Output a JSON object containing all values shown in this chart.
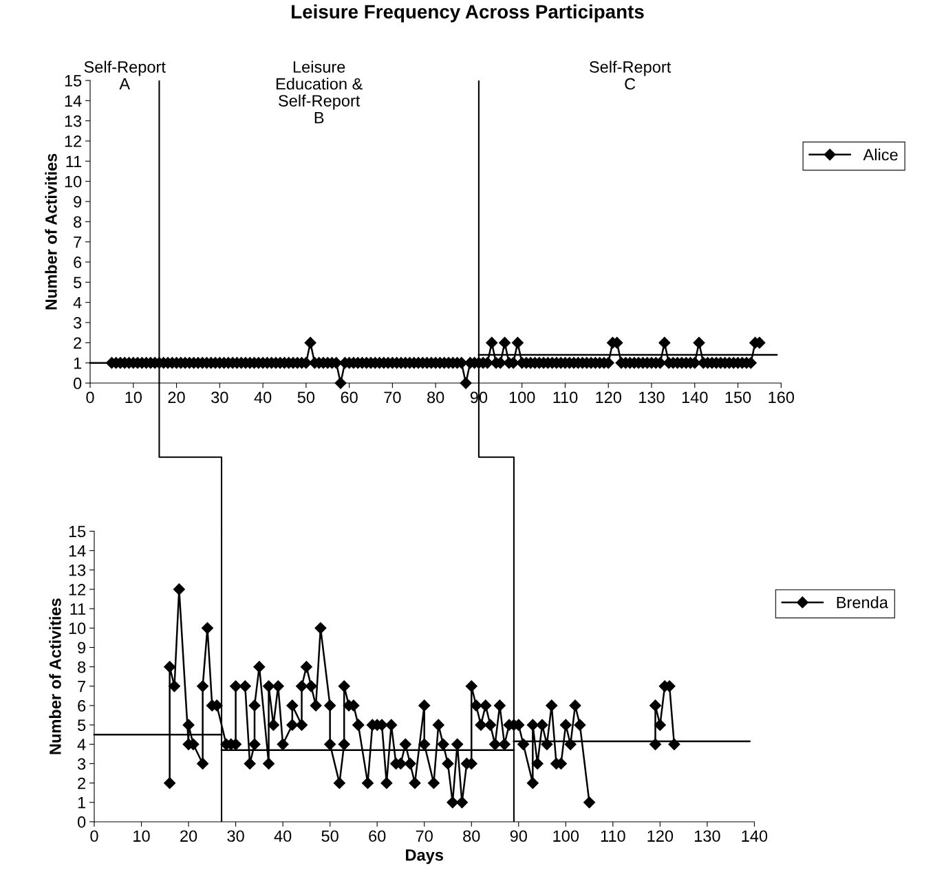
{
  "chart_data": [
    {
      "type": "line",
      "title": "Leisure Frequency Across Participants",
      "ylabel": "Number of Activities",
      "xlim": [
        0,
        160
      ],
      "xticks": [
        0,
        10,
        20,
        30,
        40,
        50,
        60,
        70,
        80,
        90,
        100,
        110,
        120,
        130,
        140,
        150,
        160
      ],
      "ylim": [
        0,
        15
      ],
      "yticks": [
        0,
        1,
        2,
        3,
        4,
        5,
        6,
        7,
        8,
        9,
        10,
        11,
        12,
        13,
        14,
        15
      ],
      "grid": false,
      "legend": "right",
      "ref_lines": [
        {
          "axis": "x",
          "value": 16,
          "color": "#000000"
        },
        {
          "axis": "x",
          "value": 90,
          "color": "#000000"
        }
      ],
      "annotations": [
        "Self-Report\nA",
        "Leisure\nEducation &\nSelf-Report\nB",
        "Self-Report\nC"
      ],
      "series": [
        {
          "name": "Alice",
          "color": "#000000",
          "marker": "diamond",
          "x": [
            5,
            6,
            7,
            8,
            9,
            10,
            11,
            12,
            13,
            14,
            15,
            16,
            17,
            18,
            19,
            20,
            21,
            22,
            23,
            24,
            25,
            26,
            27,
            28,
            29,
            30,
            31,
            32,
            33,
            34,
            35,
            36,
            37,
            38,
            39,
            40,
            41,
            42,
            43,
            44,
            45,
            46,
            47,
            48,
            49,
            50,
            51,
            52,
            53,
            54,
            55,
            56,
            57,
            58,
            59,
            60,
            61,
            62,
            63,
            64,
            65,
            66,
            67,
            68,
            69,
            70,
            71,
            72,
            73,
            74,
            75,
            76,
            77,
            78,
            79,
            80,
            81,
            82,
            83,
            84,
            85,
            86,
            87,
            88,
            89,
            90,
            91,
            92,
            93,
            94,
            95,
            96,
            97,
            98,
            99,
            100,
            101,
            102,
            103,
            104,
            105,
            106,
            107,
            108,
            109,
            110,
            111,
            112,
            113,
            114,
            115,
            116,
            117,
            118,
            119,
            120,
            121,
            122,
            123,
            124,
            125,
            126,
            127,
            128,
            129,
            130,
            131,
            132,
            133,
            134,
            135,
            136,
            137,
            138,
            139,
            140,
            141,
            142,
            143,
            144,
            145,
            146,
            147,
            148,
            149,
            150,
            151,
            152,
            153,
            154,
            155
          ],
          "values": [
            1,
            1,
            1,
            1,
            1,
            1,
            1,
            1,
            1,
            1,
            1,
            1,
            1,
            1,
            1,
            1,
            1,
            1,
            1,
            1,
            1,
            1,
            1,
            1,
            1,
            1,
            1,
            1,
            1,
            1,
            1,
            1,
            1,
            1,
            1,
            1,
            1,
            1,
            1,
            1,
            1,
            1,
            1,
            1,
            1,
            1,
            2,
            1,
            1,
            1,
            1,
            1,
            1,
            0,
            1,
            1,
            1,
            1,
            1,
            1,
            1,
            1,
            1,
            1,
            1,
            1,
            1,
            1,
            1,
            1,
            1,
            1,
            1,
            1,
            1,
            1,
            1,
            1,
            1,
            1,
            1,
            1,
            0,
            1,
            1,
            1,
            1,
            1,
            2,
            1,
            1,
            2,
            1,
            1,
            2,
            1,
            1,
            1,
            1,
            1,
            1,
            1,
            1,
            1,
            1,
            1,
            1,
            1,
            1,
            1,
            1,
            1,
            1,
            1,
            1,
            1,
            2,
            2,
            1,
            1,
            1,
            1,
            1,
            1,
            1,
            1,
            1,
            1,
            2,
            1,
            1,
            1,
            1,
            1,
            1,
            1,
            2,
            1,
            1,
            1,
            1,
            1,
            1,
            1,
            1,
            1,
            1,
            1,
            1,
            2,
            2
          ]
        },
        {
          "type": "line",
          "color": "#000000",
          "marker": "none",
          "x": [
            0,
            16
          ],
          "values": [
            1,
            1
          ]
        },
        {
          "type": "line",
          "color": "#000000",
          "marker": "none",
          "x": [
            90,
            159
          ],
          "values": [
            1.4,
            1.4
          ]
        }
      ]
    },
    {
      "type": "line",
      "xlabel": "Days",
      "ylabel": "Number of Activities",
      "xlim": [
        0,
        140
      ],
      "xticks": [
        0,
        10,
        20,
        30,
        40,
        50,
        60,
        70,
        80,
        90,
        100,
        110,
        120,
        130,
        140
      ],
      "ylim": [
        0,
        15
      ],
      "yticks": [
        0,
        1,
        2,
        3,
        4,
        5,
        6,
        7,
        8,
        9,
        10,
        11,
        12,
        13,
        14,
        15
      ],
      "grid": false,
      "legend": "right",
      "ref_lines": [
        {
          "axis": "x",
          "value": 27,
          "color": "#000000"
        },
        {
          "axis": "x",
          "value": 89,
          "color": "#000000"
        }
      ],
      "series": [
        {
          "name": "Brenda",
          "color": "#000000",
          "marker": "diamond",
          "x": [
            16,
            16,
            17,
            18,
            20,
            20,
            21,
            23,
            23,
            24,
            25,
            26,
            28,
            29,
            30,
            30,
            32,
            33,
            34,
            34,
            35,
            37,
            37,
            38,
            39,
            40,
            42,
            42,
            44,
            44,
            45,
            46,
            47,
            48,
            50,
            50,
            52,
            53,
            53,
            54,
            55,
            56,
            56,
            58,
            59,
            60,
            61,
            62,
            63,
            64,
            65,
            66,
            67,
            68,
            70,
            70,
            72,
            73,
            74,
            75,
            76,
            77,
            78,
            79,
            80,
            80,
            81,
            82,
            83,
            84,
            85,
            86,
            87,
            88,
            89,
            90,
            91,
            93,
            93,
            94,
            95,
            96,
            97,
            98,
            99,
            100,
            101,
            102,
            103,
            105,
            110,
            119,
            119,
            120,
            121,
            122,
            123
          ],
          "values": [
            2,
            8,
            7,
            12,
            4,
            5,
            4,
            3,
            7,
            10,
            6,
            6,
            4,
            4,
            4,
            7,
            7,
            3,
            4,
            6,
            8,
            3,
            7,
            5,
            7,
            4,
            5,
            6,
            5,
            7,
            8,
            7,
            6,
            10,
            6,
            4,
            2,
            4,
            7,
            6,
            6,
            5,
            5,
            2,
            5,
            5,
            5,
            2,
            5,
            3,
            3,
            4,
            3,
            2,
            6,
            4,
            2,
            5,
            4,
            3,
            1,
            4,
            1,
            3,
            3,
            7,
            6,
            5,
            6,
            5,
            4,
            6,
            4,
            5,
            5,
            5,
            4,
            2,
            5,
            3,
            5,
            4,
            6,
            3,
            3,
            5,
            4,
            6,
            5,
            1,
            null,
            4,
            6,
            5,
            7,
            7,
            4
          ]
        },
        {
          "type": "line",
          "color": "#000000",
          "marker": "none",
          "x": [
            0,
            27
          ],
          "values": [
            4.5,
            4.5
          ]
        },
        {
          "type": "line",
          "color": "#000000",
          "marker": "none",
          "x": [
            27,
            89
          ],
          "values": [
            3.7,
            3.7
          ]
        },
        {
          "type": "line",
          "color": "#000000",
          "marker": "none",
          "x": [
            89,
            139
          ],
          "values": [
            4.15,
            4.15
          ]
        }
      ]
    }
  ]
}
